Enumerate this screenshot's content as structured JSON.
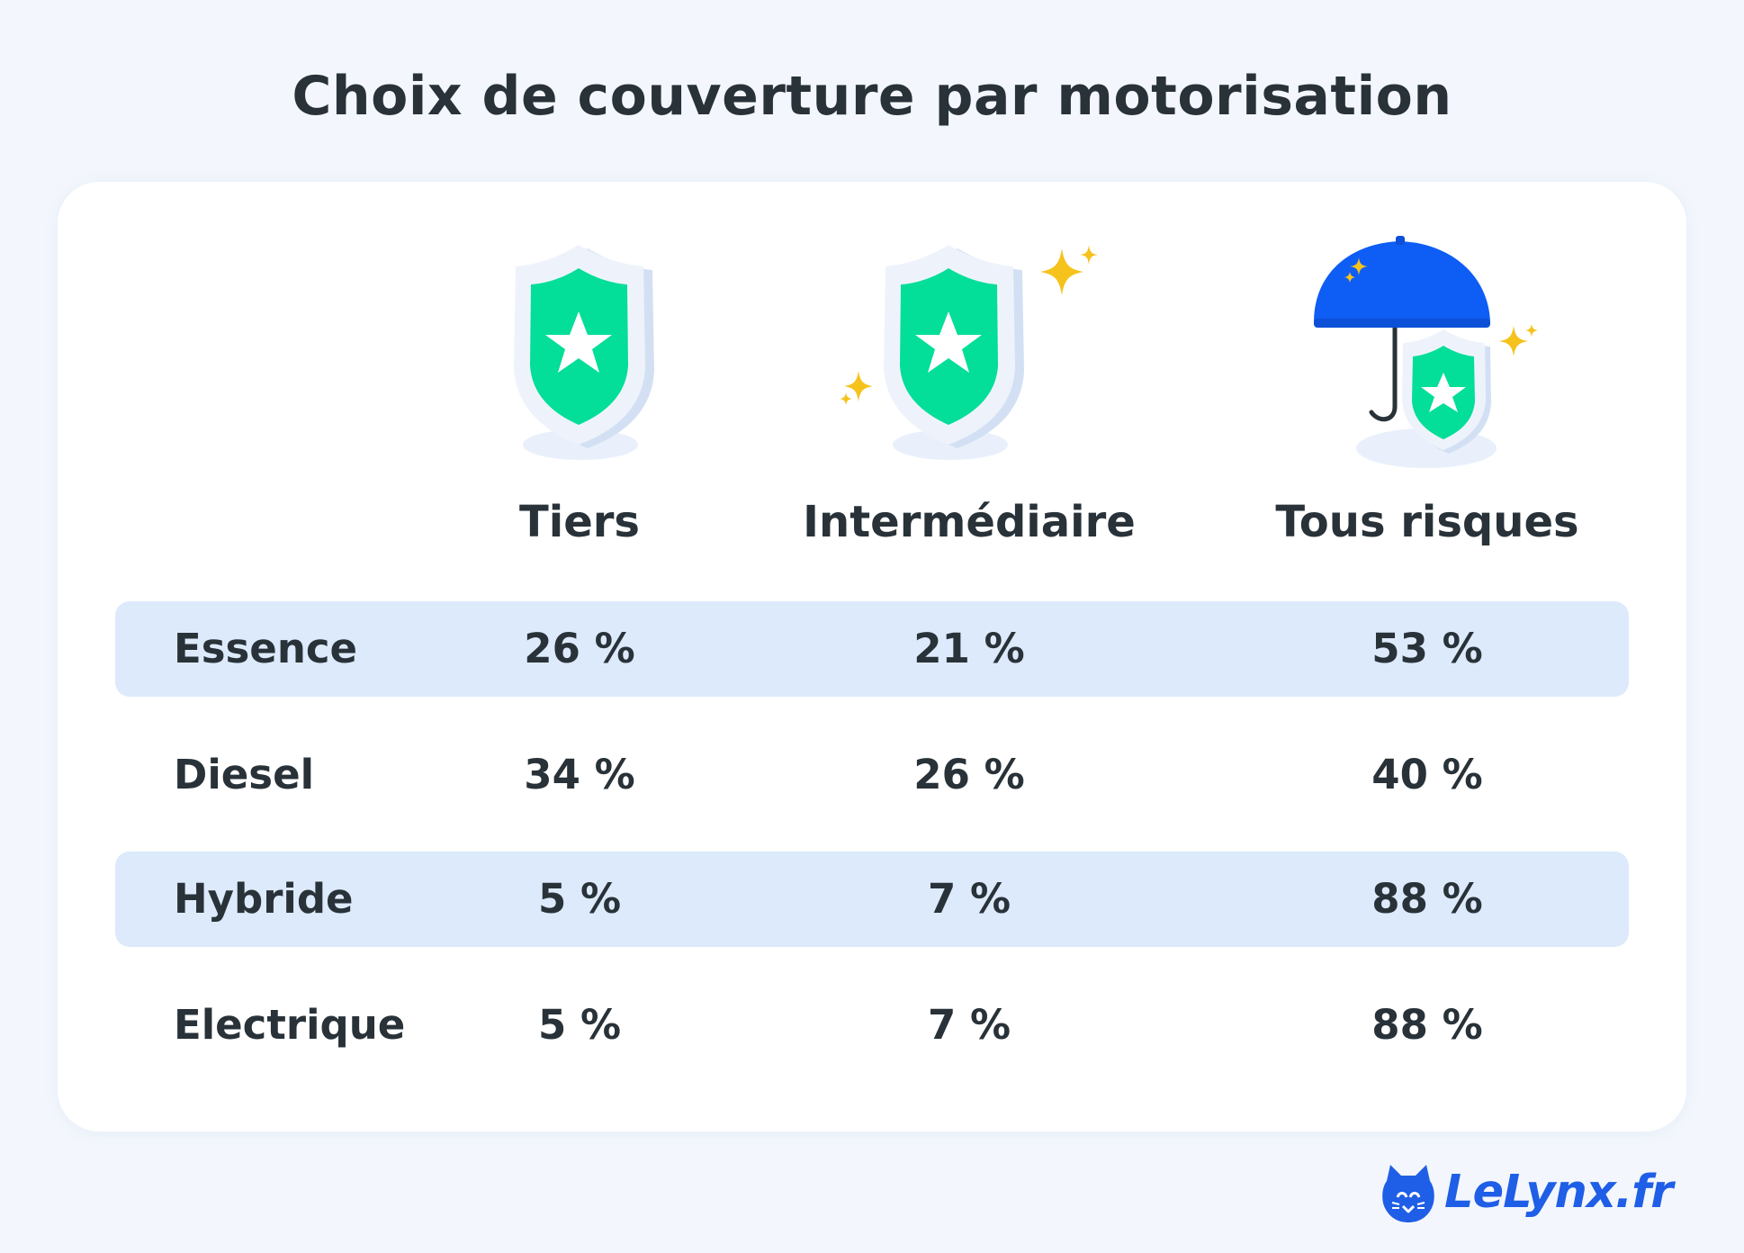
{
  "title": "Choix de couverture par motorisation",
  "columns": [
    {
      "label": "Tiers",
      "icon": "shield-star-icon"
    },
    {
      "label": "Intermédiaire",
      "icon": "shield-star-sparkles-icon"
    },
    {
      "label": "Tous risques",
      "icon": "umbrella-shield-icon"
    }
  ],
  "rows": [
    {
      "label": "Essence",
      "values": [
        "26 %",
        "21 %",
        "53 %"
      ]
    },
    {
      "label": "Diesel",
      "values": [
        "34 %",
        "26 %",
        "40 %"
      ]
    },
    {
      "label": "Hybride",
      "values": [
        "5 %",
        "7 %",
        "88 %"
      ]
    },
    {
      "label": "Electrique",
      "values": [
        "5 %",
        "7 %",
        "88 %"
      ]
    }
  ],
  "brand": {
    "name": "LeLynx.fr",
    "icon": "lynx-logo-icon"
  },
  "colors": {
    "background": "#f3f7fd",
    "card": "#ffffff",
    "row_band": "#ddeafc",
    "text": "#283238",
    "shield_green": "#03de98",
    "umbrella_blue": "#0e5df5",
    "sparkle_yellow": "#f6c21c",
    "brand_blue": "#1f5ee6"
  }
}
